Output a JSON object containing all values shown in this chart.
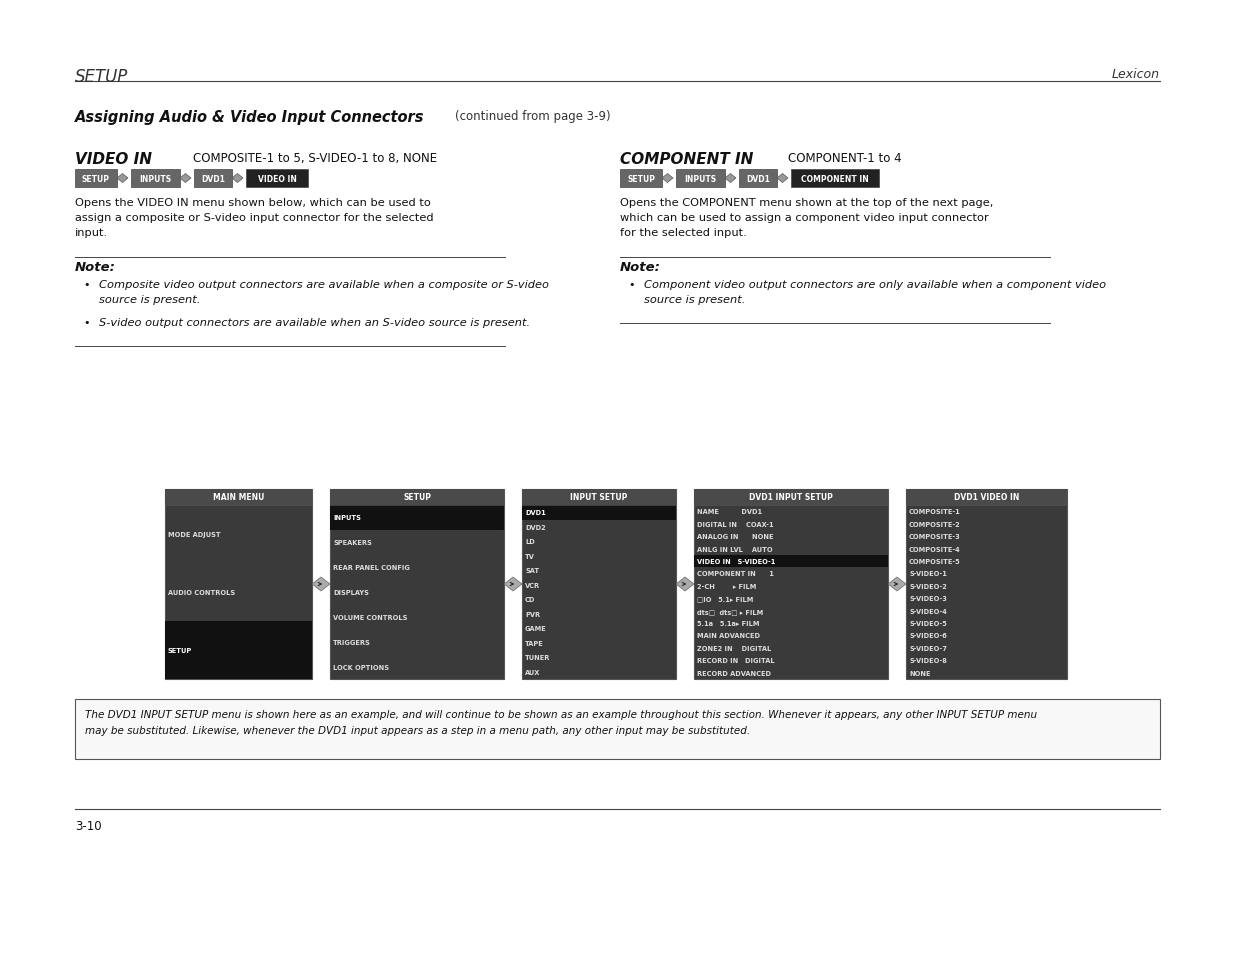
{
  "bg_color": "#ffffff",
  "header_title": "SETUP",
  "header_right": "Lexicon",
  "section_title": "Assigning Audio & Video Input Connectors",
  "section_subtitle": "(continued from page 3-9)",
  "video_in_title": "VIDEO IN",
  "video_in_range": "COMPOSITE-1 to 5, S-VIDEO-1 to 8, NONE",
  "component_in_title": "COMPONENT IN",
  "component_in_range": "COMPONENT-1 to 4",
  "video_breadcrumb": [
    "SETUP",
    "INPUTS",
    "DVD1",
    "VIDEO IN"
  ],
  "component_breadcrumb": [
    "SETUP",
    "INPUTS",
    "DVD1",
    "COMPONENT IN"
  ],
  "video_desc_lines": [
    "Opens the VIDEO IN menu shown below, which can be used to",
    "assign a composite or S-video input connector for the selected",
    "input."
  ],
  "component_desc_lines": [
    "Opens the COMPONENT menu shown at the top of the next page,",
    "which can be used to assign a component video input connector",
    "for the selected input."
  ],
  "video_notes": [
    "Composite video output connectors are available when a composite or S-video source is present.",
    "S-video output connectors are available when an S-video source is present."
  ],
  "component_notes": [
    "Component video output connectors are only available when a component video source is present."
  ],
  "menu_boxes": [
    {
      "title": "MAIN MENU",
      "items": [
        "MODE ADJUST",
        "AUDIO CONTROLS",
        "SETUP"
      ],
      "highlight_items": [
        "SETUP"
      ],
      "highlight_title": false
    },
    {
      "title": "SETUP",
      "items": [
        "INPUTS",
        "SPEAKERS",
        "REAR PANEL CONFIG",
        "DISPLAYS",
        "VOLUME CONTROLS",
        "TRIGGERS",
        "LOCK OPTIONS"
      ],
      "highlight_items": [
        "INPUTS"
      ],
      "highlight_title": false
    },
    {
      "title": "INPUT SETUP",
      "items": [
        "DVD1",
        "DVD2",
        "LD",
        "TV",
        "SAT",
        "VCR",
        "CD",
        "PVR",
        "GAME",
        "TAPE",
        "TUNER",
        "AUX"
      ],
      "highlight_items": [
        "DVD1"
      ],
      "highlight_title": false
    },
    {
      "title": "DVD1 INPUT SETUP",
      "items": [
        "NAME          DVD1",
        "DIGITAL IN    COAX-1",
        "ANALOG IN      NONE",
        "ANLG IN LVL    AUTO",
        "VIDEO IN   S-VIDEO-1",
        "COMPONENT IN      1",
        "2-CH        ▸ FILM",
        "□IO   5.1▸ FILM",
        "dts□  dts□ ▸ FILM",
        "5.1a   5.1a▸ FILM",
        "MAIN ADVANCED",
        "ZONE2 IN    DIGITAL",
        "RECORD IN   DIGITAL",
        "RECORD ADVANCED"
      ],
      "highlight_items": [
        "VIDEO IN   S-VIDEO-1"
      ],
      "highlight_title": false
    },
    {
      "title": "DVD1 VIDEO IN",
      "items": [
        "COMPOSITE-1",
        "COMPOSITE-2",
        "COMPOSITE-3",
        "COMPOSITE-4",
        "COMPOSITE-5",
        "S-VIDEO-1",
        "S-VIDEO-2",
        "S-VIDEO-3",
        "S-VIDEO-4",
        "S-VIDEO-5",
        "S-VIDEO-6",
        "S-VIDEO-7",
        "S-VIDEO-8",
        "NONE"
      ],
      "highlight_items": [],
      "highlight_title": false
    }
  ],
  "footer_lines": [
    "The DVD1 INPUT SETUP menu is shown here as an example, and will continue to be shown as an example throughout this section. Whenever it appears, any other INPUT SETUP menu",
    "may be substituted. Likewise, whenever the DVD1 input appears as a step in a menu path, any other input may be substituted."
  ],
  "page_number": "3-10"
}
